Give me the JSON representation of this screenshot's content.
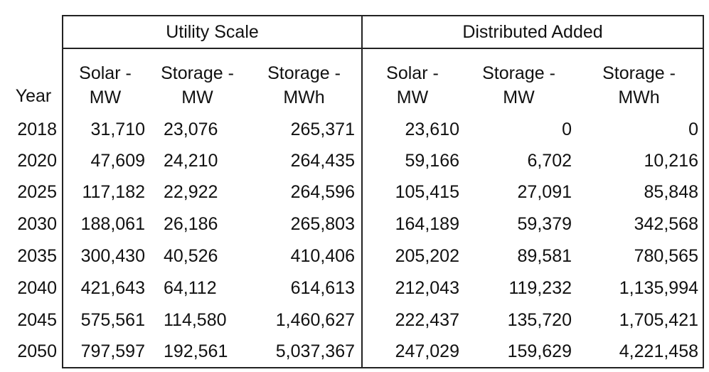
{
  "table": {
    "group_headers": {
      "utility": "Utility Scale",
      "distributed": "Distributed Added"
    },
    "column_headers": {
      "year": "Year",
      "u_solar_mw": [
        "Solar -",
        "MW"
      ],
      "u_storage_mw": [
        "Storage -",
        "MW"
      ],
      "u_storage_mwh": [
        "Storage -",
        "MWh"
      ],
      "d_solar_mw": [
        "Solar -",
        "MW"
      ],
      "d_storage_mw": [
        "Storage -",
        "MW"
      ],
      "d_storage_mwh": [
        "Storage -",
        "MWh"
      ]
    },
    "rows": [
      {
        "year": "2018",
        "u_solar_mw": "31,710",
        "u_storage_mw": "23,076",
        "u_storage_mwh": "265,371",
        "d_solar_mw": "23,610",
        "d_storage_mw": "0",
        "d_storage_mwh": "0"
      },
      {
        "year": "2020",
        "u_solar_mw": "47,609",
        "u_storage_mw": "24,210",
        "u_storage_mwh": "264,435",
        "d_solar_mw": "59,166",
        "d_storage_mw": "6,702",
        "d_storage_mwh": "10,216"
      },
      {
        "year": "2025",
        "u_solar_mw": "117,182",
        "u_storage_mw": "22,922",
        "u_storage_mwh": "264,596",
        "d_solar_mw": "105,415",
        "d_storage_mw": "27,091",
        "d_storage_mwh": "85,848"
      },
      {
        "year": "2030",
        "u_solar_mw": "188,061",
        "u_storage_mw": "26,186",
        "u_storage_mwh": "265,803",
        "d_solar_mw": "164,189",
        "d_storage_mw": "59,379",
        "d_storage_mwh": "342,568"
      },
      {
        "year": "2035",
        "u_solar_mw": "300,430",
        "u_storage_mw": "40,526",
        "u_storage_mwh": "410,406",
        "d_solar_mw": "205,202",
        "d_storage_mw": "89,581",
        "d_storage_mwh": "780,565"
      },
      {
        "year": "2040",
        "u_solar_mw": "421,643",
        "u_storage_mw": "64,112",
        "u_storage_mwh": "614,613",
        "d_solar_mw": "212,043",
        "d_storage_mw": "119,232",
        "d_storage_mwh": "1,135,994"
      },
      {
        "year": "2045",
        "u_solar_mw": "575,561",
        "u_storage_mw": "114,580",
        "u_storage_mwh": "1,460,627",
        "d_solar_mw": "222,437",
        "d_storage_mw": "135,720",
        "d_storage_mwh": "1,705,421"
      },
      {
        "year": "2050",
        "u_solar_mw": "797,597",
        "u_storage_mw": "192,561",
        "u_storage_mwh": "5,037,367",
        "d_solar_mw": "247,029",
        "d_storage_mw": "159,629",
        "d_storage_mwh": "4,221,458"
      }
    ]
  }
}
